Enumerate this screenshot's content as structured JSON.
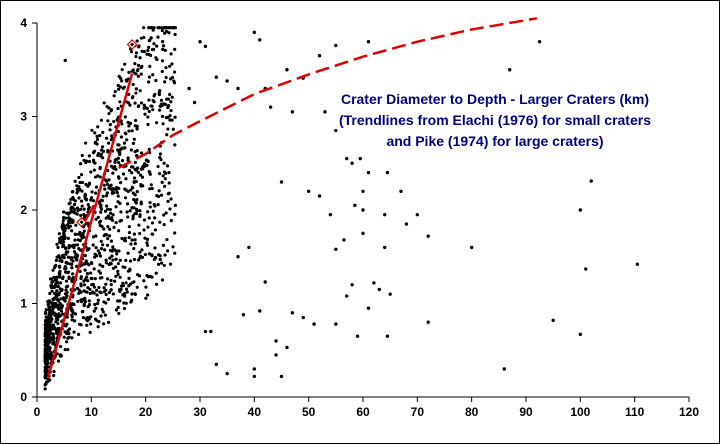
{
  "chart_data": {
    "type": "scatter",
    "title_lines": [
      "Crater Diameter to Depth - Larger Craters (km)",
      "(Trendlines from Elachi (1976) for small craters",
      "and Pike (1974) for large craters)"
    ],
    "xlabel": "",
    "ylabel": "",
    "xlim": [
      0,
      120
    ],
    "ylim": [
      0,
      4
    ],
    "x_ticks": [
      0,
      10,
      20,
      30,
      40,
      50,
      60,
      70,
      80,
      90,
      100,
      110,
      120
    ],
    "y_ticks": [
      0,
      1,
      2,
      3,
      4
    ],
    "grid": false,
    "legend": "none",
    "point_color": "#000000",
    "trend_color": "#e00000",
    "series": [
      {
        "kind": "scatter-points",
        "points": [
          [
            5.2,
            3.6
          ],
          [
            21,
            3.84
          ],
          [
            30,
            3.8
          ],
          [
            31,
            3.75
          ],
          [
            40,
            3.9
          ],
          [
            41,
            3.82
          ],
          [
            52,
            3.65
          ],
          [
            55,
            3.76
          ],
          [
            61,
            3.8
          ],
          [
            92.5,
            3.8
          ],
          [
            87,
            3.5
          ],
          [
            33,
            3.42
          ],
          [
            35,
            3.38
          ],
          [
            37,
            3.3
          ],
          [
            42,
            3.3
          ],
          [
            46,
            3.5
          ],
          [
            49,
            3.41
          ],
          [
            28,
            3.3
          ],
          [
            29,
            3.15
          ],
          [
            43,
            3.1
          ],
          [
            47,
            3.05
          ],
          [
            53,
            3.05
          ],
          [
            55,
            2.85
          ],
          [
            57,
            2.55
          ],
          [
            58,
            2.5
          ],
          [
            59.5,
            2.55
          ],
          [
            61,
            2.4
          ],
          [
            64.5,
            2.4
          ],
          [
            67,
            2.2
          ],
          [
            60,
            2.2
          ],
          [
            45,
            2.3
          ],
          [
            50,
            2.2
          ],
          [
            52,
            2.15
          ],
          [
            54,
            1.95
          ],
          [
            58.5,
            2.05
          ],
          [
            60,
            2.0
          ],
          [
            64,
            1.95
          ],
          [
            70,
            1.95
          ],
          [
            72,
            1.72
          ],
          [
            68,
            1.85
          ],
          [
            80,
            1.6
          ],
          [
            100,
            2.0
          ],
          [
            102,
            2.31
          ],
          [
            101,
            1.37
          ],
          [
            110.5,
            1.42
          ],
          [
            64,
            1.6
          ],
          [
            60,
            1.75
          ],
          [
            56.5,
            1.68
          ],
          [
            55,
            1.58
          ],
          [
            62,
            1.22
          ],
          [
            63,
            1.15
          ],
          [
            58,
            1.2
          ],
          [
            57,
            1.08
          ],
          [
            65,
            1.1
          ],
          [
            61,
            0.95
          ],
          [
            47,
            0.9
          ],
          [
            49,
            0.85
          ],
          [
            51,
            0.78
          ],
          [
            55,
            0.78
          ],
          [
            59,
            0.65
          ],
          [
            64.5,
            0.65
          ],
          [
            72,
            0.8
          ],
          [
            95,
            0.82
          ],
          [
            100,
            0.67
          ],
          [
            86,
            0.3
          ],
          [
            40,
            0.3
          ],
          [
            40,
            0.22
          ],
          [
            45,
            0.22
          ],
          [
            35,
            0.25
          ],
          [
            33,
            0.35
          ],
          [
            31,
            0.7
          ],
          [
            32,
            0.7
          ],
          [
            38,
            0.88
          ],
          [
            41,
            0.92
          ],
          [
            44,
            0.6
          ],
          [
            44,
            0.45
          ],
          [
            46,
            0.53
          ],
          [
            42,
            1.23
          ],
          [
            39,
            1.6
          ],
          [
            37,
            1.5
          ]
        ]
      },
      {
        "kind": "elachi-small-crater-trend",
        "points": [
          [
            2.0,
            0.2
          ],
          [
            17.5,
            3.46
          ]
        ]
      },
      {
        "kind": "elachi-lower-trend",
        "points": [
          [
            8.5,
            1.85
          ],
          [
            10.5,
            2.05
          ]
        ]
      },
      {
        "kind": "pike-large-crater-trend",
        "points": [
          [
            15,
            2.45
          ],
          [
            20,
            2.6
          ],
          [
            25,
            2.8
          ],
          [
            30,
            2.95
          ],
          [
            40,
            3.24
          ],
          [
            50,
            3.45
          ],
          [
            60,
            3.64
          ],
          [
            70,
            3.8
          ],
          [
            80,
            3.93
          ],
          [
            92,
            4.05
          ]
        ]
      },
      {
        "kind": "diamond-markers",
        "points": [
          [
            17.5,
            3.77
          ],
          [
            8.2,
            1.87
          ]
        ]
      }
    ]
  }
}
